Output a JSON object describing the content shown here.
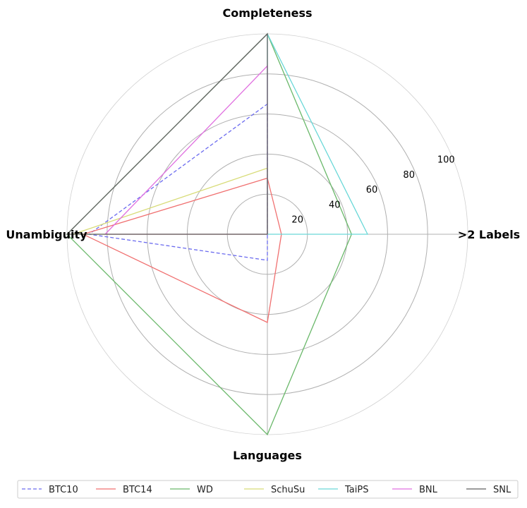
{
  "chart_data": {
    "type": "radar",
    "axes": [
      ">2 Labels",
      "Completeness",
      "Unambiguity",
      "Languages"
    ],
    "rlim": [
      0,
      100
    ],
    "rticks": [
      20,
      40,
      60,
      80,
      100
    ],
    "rtick_labels": [
      "20",
      "40",
      "60",
      "80",
      "100"
    ],
    "grid": true,
    "legend_placement": "bottom",
    "series": [
      {
        "name": "BTC10",
        "values": [
          0,
          65,
          89,
          13
        ],
        "color": "#6b6bef",
        "dash": true
      },
      {
        "name": "BTC14",
        "values": [
          7,
          28,
          92,
          44
        ],
        "color": "#f07070",
        "dash": false
      },
      {
        "name": "WD",
        "values": [
          42,
          100,
          100,
          100
        ],
        "color": "#6ab86a",
        "dash": false
      },
      {
        "name": "SchuSu",
        "values": [
          0,
          33,
          97,
          0
        ],
        "color": "#d8dc78",
        "dash": false
      },
      {
        "name": "TaiPS",
        "values": [
          50,
          100,
          0,
          0
        ],
        "color": "#6ad8d8",
        "dash": false
      },
      {
        "name": "BNL",
        "values": [
          0,
          84,
          81,
          0
        ],
        "color": "#e070e0",
        "dash": false
      },
      {
        "name": "SNL",
        "values": [
          0,
          100,
          100,
          0
        ],
        "color": "#606060",
        "dash": false
      }
    ]
  }
}
